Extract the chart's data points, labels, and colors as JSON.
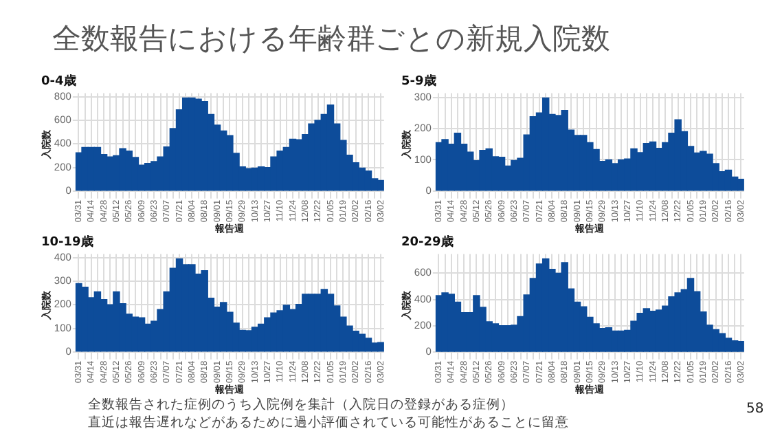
{
  "chart_data": [
    {
      "type": "other",
      "title": "全数報告における年齢群ごとの新規入院数",
      "annotations": [
        "全数報告された症例のうち入院例を集計（入院日の登録がある症例）",
        "直近は報告遅れなどがあるために過小評価されている可能性があることに留意",
        "58"
      ]
    },
    {
      "type": "bar",
      "title": "0-4歳",
      "xlabel": "報告週",
      "ylabel": "入院数",
      "color": "#0d4c9a",
      "grid": true,
      "legend": false,
      "categories": [
        "03/31",
        null,
        "04/14",
        null,
        "04/28",
        null,
        "05/12",
        null,
        "05/26",
        null,
        "06/09",
        null,
        "06/23",
        null,
        "07/07",
        null,
        "07/21",
        null,
        "08/04",
        null,
        "08/18",
        null,
        "09/01",
        null,
        "09/15",
        null,
        "09/29",
        null,
        "10/13",
        null,
        "10/27",
        null,
        "11/10",
        null,
        "11/24",
        null,
        "12/08",
        null,
        "12/22",
        null,
        "01/05",
        null,
        "01/19",
        null,
        "02/02",
        null,
        "02/16",
        null,
        "03/02"
      ],
      "values": [
        325,
        370,
        370,
        370,
        310,
        290,
        300,
        360,
        340,
        285,
        220,
        235,
        250,
        290,
        375,
        530,
        690,
        790,
        790,
        780,
        760,
        650,
        560,
        510,
        470,
        320,
        205,
        190,
        195,
        205,
        200,
        290,
        340,
        370,
        440,
        435,
        480,
        570,
        600,
        650,
        730,
        570,
        430,
        305,
        240,
        195,
        170,
        105,
        90
      ],
      "ylim": [
        -40,
        830
      ],
      "yticks": [
        0,
        200,
        400,
        600,
        800
      ]
    },
    {
      "type": "bar",
      "title": "5-9歳",
      "xlabel": "報告週",
      "ylabel": "入院数",
      "color": "#0d4c9a",
      "grid": true,
      "legend": false,
      "categories": [
        "03/31",
        null,
        "04/14",
        null,
        "04/28",
        null,
        "05/12",
        null,
        "05/26",
        null,
        "06/09",
        null,
        "06/23",
        null,
        "07/07",
        null,
        "07/21",
        null,
        "08/04",
        null,
        "08/18",
        null,
        "09/01",
        null,
        "09/15",
        null,
        "09/29",
        null,
        "10/13",
        null,
        "10/27",
        null,
        "11/10",
        null,
        "11/24",
        null,
        "12/08",
        null,
        "12/22",
        null,
        "01/05",
        null,
        "01/19",
        null,
        "02/02",
        null,
        "02/16",
        null,
        "03/02"
      ],
      "values": [
        155,
        165,
        150,
        185,
        150,
        125,
        97,
        130,
        135,
        110,
        108,
        80,
        98,
        105,
        180,
        238,
        250,
        298,
        245,
        242,
        258,
        195,
        178,
        178,
        155,
        133,
        95,
        100,
        88,
        100,
        103,
        135,
        123,
        152,
        157,
        137,
        155,
        185,
        228,
        190,
        143,
        122,
        127,
        118,
        88,
        62,
        67,
        45,
        38
      ],
      "ylim": [
        -15,
        313
      ],
      "yticks": [
        0,
        100,
        200,
        300
      ]
    },
    {
      "type": "bar",
      "title": "10-19歳",
      "xlabel": "報告週",
      "ylabel": "入院数",
      "color": "#0d4c9a",
      "grid": true,
      "legend": false,
      "categories": [
        "03/31",
        null,
        "04/14",
        null,
        "04/28",
        null,
        "05/12",
        null,
        "05/26",
        null,
        "06/09",
        null,
        "06/23",
        null,
        "07/07",
        null,
        "07/21",
        null,
        "08/04",
        null,
        "08/18",
        null,
        "09/01",
        null,
        "09/15",
        null,
        "09/29",
        null,
        "10/13",
        null,
        "10/27",
        null,
        "11/10",
        null,
        "11/24",
        null,
        "12/08",
        null,
        "12/22",
        null,
        "01/05",
        null,
        "01/19",
        null,
        "02/02",
        null,
        "02/16",
        null,
        "03/02"
      ],
      "values": [
        290,
        275,
        230,
        255,
        222,
        200,
        255,
        205,
        160,
        148,
        145,
        118,
        130,
        180,
        255,
        355,
        395,
        370,
        370,
        330,
        345,
        228,
        190,
        210,
        168,
        122,
        92,
        90,
        105,
        118,
        145,
        165,
        175,
        198,
        180,
        202,
        245,
        245,
        245,
        265,
        245,
        195,
        148,
        110,
        88,
        75,
        58,
        38,
        40
      ],
      "ylim": [
        -20,
        415
      ],
      "yticks": [
        0,
        100,
        200,
        300,
        400
      ]
    },
    {
      "type": "bar",
      "title": "20-29歳",
      "xlabel": "報告週",
      "ylabel": "入院数",
      "color": "#0d4c9a",
      "grid": true,
      "legend": false,
      "categories": [
        "03/31",
        null,
        "04/14",
        null,
        "04/28",
        null,
        "05/12",
        null,
        "05/26",
        null,
        "06/09",
        null,
        "06/23",
        null,
        "07/07",
        null,
        "07/21",
        null,
        "08/04",
        null,
        "08/18",
        null,
        "09/01",
        null,
        "09/15",
        null,
        "09/29",
        null,
        "10/13",
        null,
        "10/27",
        null,
        "11/10",
        null,
        "11/24",
        null,
        "12/08",
        null,
        "12/22",
        null,
        "01/05",
        null,
        "01/19",
        null,
        "02/02",
        null,
        "02/16",
        null,
        "03/02"
      ],
      "values": [
        430,
        450,
        440,
        380,
        300,
        300,
        430,
        340,
        230,
        215,
        200,
        200,
        205,
        270,
        435,
        560,
        670,
        710,
        630,
        600,
        680,
        480,
        380,
        345,
        265,
        215,
        180,
        185,
        160,
        160,
        165,
        235,
        295,
        330,
        310,
        320,
        350,
        420,
        450,
        475,
        560,
        460,
        305,
        205,
        170,
        140,
        105,
        85,
        80
      ],
      "ylim": [
        -35,
        745
      ],
      "yticks": [
        0,
        200,
        400,
        600
      ]
    }
  ]
}
